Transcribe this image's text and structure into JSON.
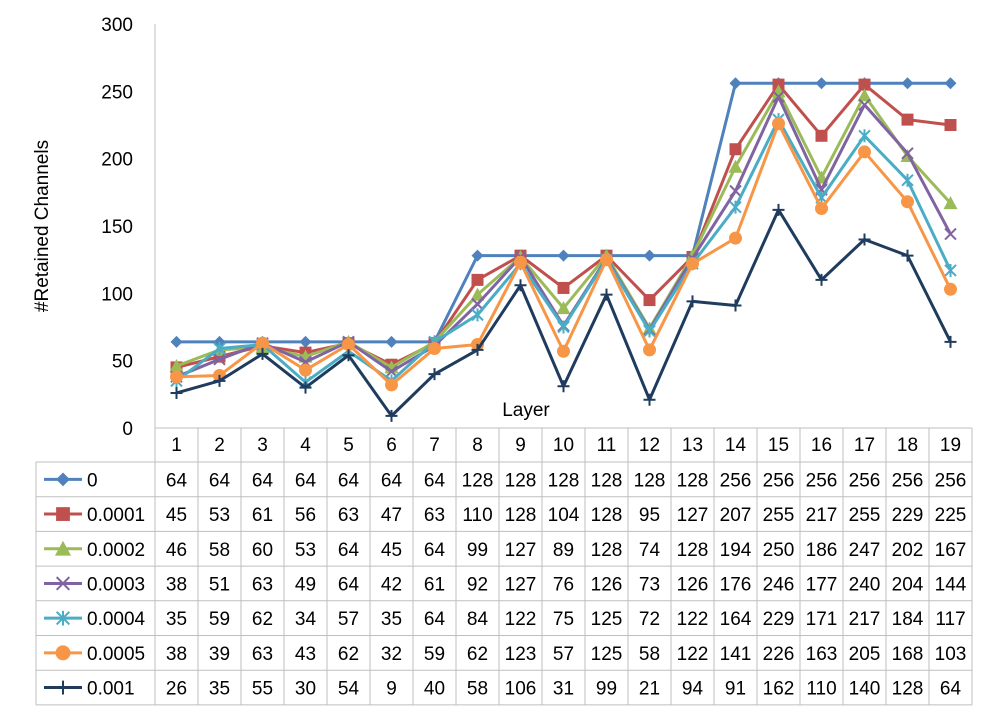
{
  "chart_data": {
    "type": "line",
    "ylabel": "#Retained Channels",
    "xlabel": "Layer",
    "ylim": [
      0,
      300
    ],
    "yticks": [
      0,
      50,
      100,
      150,
      200,
      250,
      300
    ],
    "grid": {
      "y": false,
      "x": false
    },
    "legend": "data-table",
    "categories": [
      "1",
      "2",
      "3",
      "4",
      "5",
      "6",
      "7",
      "8",
      "9",
      "10",
      "11",
      "12",
      "13",
      "14",
      "15",
      "16",
      "17",
      "18",
      "19"
    ],
    "series": [
      {
        "name": "0",
        "color": "#4F81BD",
        "marker": "diamond",
        "values": [
          64,
          64,
          64,
          64,
          64,
          64,
          64,
          128,
          128,
          128,
          128,
          128,
          128,
          256,
          256,
          256,
          256,
          256,
          256
        ]
      },
      {
        "name": "0.0001",
        "color": "#C0504D",
        "marker": "square",
        "values": [
          45,
          53,
          61,
          56,
          63,
          47,
          63,
          110,
          128,
          104,
          128,
          95,
          127,
          207,
          255,
          217,
          255,
          229,
          225
        ]
      },
      {
        "name": "0.0002",
        "color": "#9BBB59",
        "marker": "triangle",
        "values": [
          46,
          58,
          60,
          53,
          64,
          45,
          64,
          99,
          127,
          89,
          128,
          74,
          128,
          194,
          250,
          186,
          247,
          202,
          167
        ]
      },
      {
        "name": "0.0003",
        "color": "#8064A2",
        "marker": "x",
        "values": [
          38,
          51,
          63,
          49,
          64,
          42,
          61,
          92,
          127,
          76,
          126,
          73,
          126,
          176,
          246,
          177,
          240,
          204,
          144
        ]
      },
      {
        "name": "0.0004",
        "color": "#4BACC6",
        "marker": "star",
        "values": [
          35,
          59,
          62,
          34,
          57,
          35,
          64,
          84,
          122,
          75,
          125,
          72,
          122,
          164,
          229,
          171,
          217,
          184,
          117
        ]
      },
      {
        "name": "0.0005",
        "color": "#F79646",
        "marker": "circle",
        "values": [
          38,
          39,
          63,
          43,
          62,
          32,
          59,
          62,
          123,
          57,
          125,
          58,
          122,
          141,
          226,
          163,
          205,
          168,
          103
        ]
      },
      {
        "name": "0.001",
        "color": "#1F3C5E",
        "marker": "plus",
        "values": [
          26,
          35,
          55,
          30,
          54,
          9,
          40,
          58,
          106,
          31,
          99,
          21,
          94,
          91,
          162,
          110,
          140,
          128,
          64
        ]
      }
    ]
  }
}
